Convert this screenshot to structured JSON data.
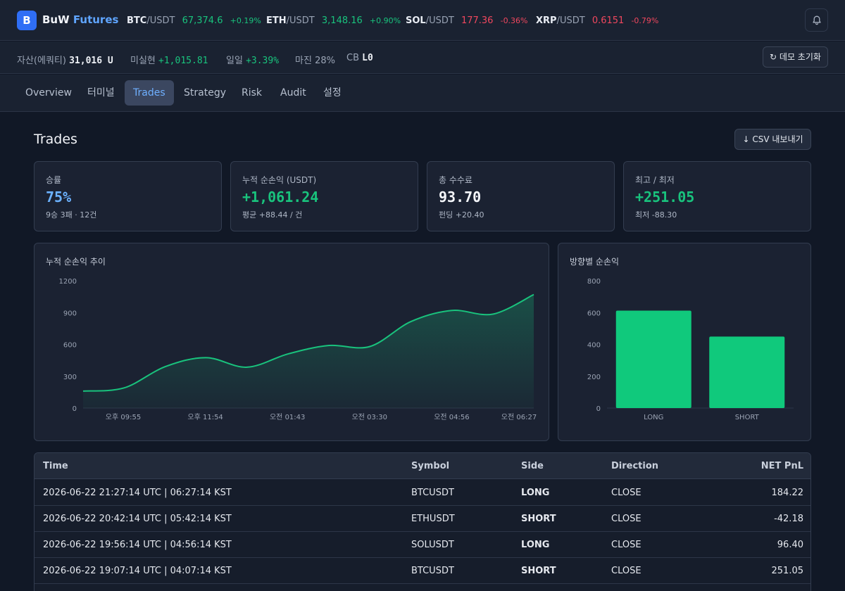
{
  "brand": {
    "logo": "B",
    "name_a": "BuW",
    "name_b": "Futures"
  },
  "tickers": [
    {
      "base": "BTC",
      "quote": "/USDT",
      "price": "67,374.6",
      "change": "+0.19%",
      "dir": "up"
    },
    {
      "base": "ETH",
      "quote": "/USDT",
      "price": "3,148.16",
      "change": "+0.90%",
      "dir": "up"
    },
    {
      "base": "SOL",
      "quote": "/USDT",
      "price": "177.36",
      "change": "-0.36%",
      "dir": "down"
    },
    {
      "base": "XRP",
      "quote": "/USDT",
      "price": "0.6151",
      "change": "-0.79%",
      "dir": "down"
    }
  ],
  "status": {
    "equity_label": "자산(에쿼티)",
    "equity_value": "31,016 U",
    "unrealized_label": "미실현",
    "unrealized_value": "+1,015.81",
    "daily_label": "일일",
    "daily_value": "+3.39%",
    "margin_label": "마진",
    "margin_value": "28%",
    "cb_label": "CB",
    "cb_value": "L0",
    "reset_label": "↻ 데모 초기화"
  },
  "tabs": [
    {
      "label": "Overview",
      "active": false
    },
    {
      "label": "터미널",
      "active": false
    },
    {
      "label": "Trades",
      "active": true
    },
    {
      "label": "Strategy",
      "active": false
    },
    {
      "label": "Risk",
      "active": false
    },
    {
      "label": "Audit",
      "active": false
    },
    {
      "label": "설정",
      "active": false
    }
  ],
  "page": {
    "title": "Trades",
    "csv_label": "↓ CSV 내보내기"
  },
  "cards": [
    {
      "label": "승률",
      "value": "75%",
      "sub": "9승 3패 · 12건",
      "color": "#6cb2ff"
    },
    {
      "label": "누적 순손익 (USDT)",
      "value": "+1,061.24",
      "sub": "평균 +88.44 / 건",
      "color": "#19c37d"
    },
    {
      "label": "총 수수료",
      "value": "93.70",
      "sub": "펀딩 +20.40",
      "color": "#f4f6fa"
    },
    {
      "label": "최고 / 최저",
      "value": "+251.05",
      "sub": "최저 -88.30",
      "color": "#19c37d"
    }
  ],
  "chart_data": [
    {
      "type": "area",
      "title": "누적 순손익 추이",
      "x_tick_labels": [
        "오후 09:55",
        "오후 11:54",
        "오전 01:43",
        "오전 03:30",
        "오전 04:56",
        "오전 06:27"
      ],
      "y_tick_labels": [
        "0",
        "300",
        "600",
        "900",
        "1200"
      ],
      "ylim": [
        0,
        1200
      ],
      "values": [
        160,
        190,
        390,
        475,
        385,
        510,
        590,
        580,
        815,
        920,
        885,
        1070
      ],
      "color": "#19c37d"
    },
    {
      "type": "bar",
      "title": "방향별 순손익",
      "categories": [
        "LONG",
        "SHORT"
      ],
      "values": [
        612,
        449
      ],
      "y_tick_labels": [
        "0",
        "200",
        "400",
        "600",
        "800"
      ],
      "ylim": [
        0,
        800
      ],
      "color": "#10c97c"
    }
  ],
  "table": {
    "headers": [
      "Time",
      "Symbol",
      "Side",
      "Direction",
      "NET PnL"
    ],
    "rows": [
      {
        "time": "2026-06-22 21:27:14 UTC | 06:27:14 KST",
        "symbol": "BTCUSDT",
        "side": "LONG",
        "direction": "CLOSE",
        "pnl": "184.22"
      },
      {
        "time": "2026-06-22 20:42:14 UTC | 05:42:14 KST",
        "symbol": "ETHUSDT",
        "side": "SHORT",
        "direction": "CLOSE",
        "pnl": "-42.18"
      },
      {
        "time": "2026-06-22 19:56:14 UTC | 04:56:14 KST",
        "symbol": "SOLUSDT",
        "side": "LONG",
        "direction": "CLOSE",
        "pnl": "96.40"
      },
      {
        "time": "2026-06-22 19:07:14 UTC | 04:07:14 KST",
        "symbol": "BTCUSDT",
        "side": "SHORT",
        "direction": "CLOSE",
        "pnl": "251.05"
      }
    ]
  }
}
